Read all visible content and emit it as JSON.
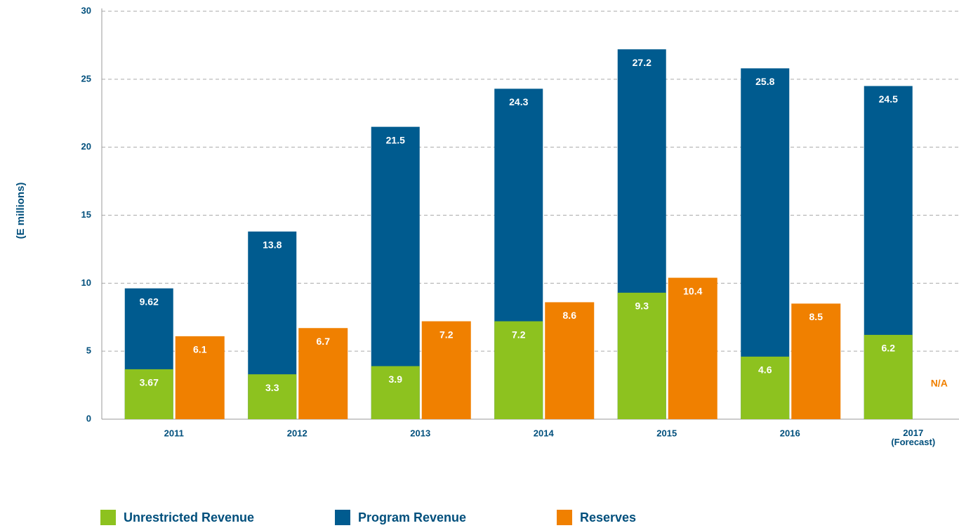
{
  "chart_data": {
    "type": "bar",
    "overlay": true,
    "y_axis_label": "(E millions)",
    "categories": [
      "2011",
      "2012",
      "2013",
      "2014",
      "2015",
      "2016",
      "2017 (Forecast)"
    ],
    "series": [
      {
        "name": "Unrestricted Revenue",
        "color": "#8dc21f",
        "values": [
          3.67,
          3.3,
          3.9,
          7.2,
          9.3,
          4.6,
          6.2
        ]
      },
      {
        "name": "Program Revenue",
        "color": "#005b8f",
        "values": [
          9.62,
          13.8,
          21.5,
          24.3,
          27.2,
          25.8,
          24.5
        ]
      },
      {
        "name": "Reserves",
        "color": "#f08000",
        "values": [
          6.1,
          6.7,
          7.2,
          8.6,
          10.4,
          8.5,
          null
        ]
      }
    ],
    "na_label": "N/A",
    "ylim": [
      0,
      30
    ],
    "yticks": [
      0,
      5,
      10,
      15,
      20,
      25,
      30
    ],
    "grid": true
  }
}
